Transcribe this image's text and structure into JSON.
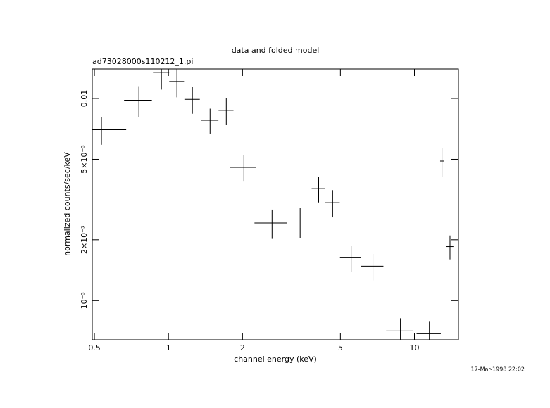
{
  "chart_data": {
    "type": "scatter",
    "title": "data and folded model",
    "subtitle": "ad73028000s110212_1.pi",
    "xlabel": "channel energy (keV)",
    "ylabel": "normalized counts/sec/keV",
    "timestamp": "17-Mar-1998 22:02",
    "xscale": "log",
    "yscale": "log",
    "xlim": [
      0.49,
      15.1
    ],
    "ylim": [
      0.00064,
      0.014
    ],
    "xticks": [
      0.5,
      1,
      2,
      5,
      10
    ],
    "yticks": [
      {
        "value": 0.001,
        "label": "10⁻³"
      },
      {
        "value": 0.002,
        "label": "2×10⁻³"
      },
      {
        "value": 0.005,
        "label": "5×10⁻³"
      },
      0.01
    ],
    "color": "#000000",
    "x": [
      0.534,
      0.758,
      0.936,
      1.082,
      1.251,
      1.476,
      1.718,
      2.026,
      2.637,
      3.43,
      4.08,
      4.65,
      5.53,
      6.78,
      8.77,
      11.5,
      12.94,
      13.95
    ],
    "xerr": [
      0.139,
      0.098,
      0.071,
      0.075,
      0.09,
      0.12,
      0.12,
      0.25,
      0.4,
      0.35,
      0.26,
      0.32,
      0.55,
      0.7,
      1.1,
      1.3,
      0.22,
      0.45
    ],
    "values": [
      0.007,
      0.0098,
      0.01346,
      0.01213,
      0.0099,
      0.0078,
      0.00873,
      0.00456,
      0.00242,
      0.00245,
      0.00358,
      0.00305,
      0.00163,
      0.00148,
      0.000708,
      0.000686,
      0.0049,
      0.00185
    ],
    "yerr": [
      0.0011,
      0.0017,
      0.0024,
      0.002,
      0.0015,
      0.0011,
      0.0013,
      0.00068,
      0.0004,
      0.00042,
      0.00052,
      0.00047,
      0.00024,
      0.00022,
      0.00011,
      0.0001,
      0.0008,
      0.00025
    ]
  }
}
